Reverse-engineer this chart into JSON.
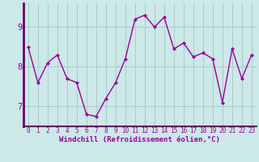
{
  "x": [
    0,
    1,
    2,
    3,
    4,
    5,
    6,
    7,
    8,
    9,
    10,
    11,
    12,
    13,
    14,
    15,
    16,
    17,
    18,
    19,
    20,
    21,
    22,
    23
  ],
  "y": [
    8.5,
    7.6,
    8.1,
    8.3,
    7.7,
    7.6,
    6.8,
    6.75,
    7.2,
    7.6,
    8.2,
    9.2,
    9.3,
    9.0,
    9.25,
    8.45,
    8.6,
    8.25,
    8.35,
    8.2,
    7.1,
    8.45,
    7.7,
    8.3
  ],
  "line_color": "#990099",
  "marker": "D",
  "marker_size": 2,
  "bg_color": "#cce8e8",
  "grid_color": "#aacccc",
  "xlabel": "Windchill (Refroidissement éolien,°C)",
  "xlabel_color": "#990099",
  "tick_color": "#990099",
  "ylim": [
    6.5,
    9.6
  ],
  "xlim": [
    -0.5,
    23.5
  ],
  "yticks": [
    7,
    8,
    9
  ],
  "xticks": [
    0,
    1,
    2,
    3,
    4,
    5,
    6,
    7,
    8,
    9,
    10,
    11,
    12,
    13,
    14,
    15,
    16,
    17,
    18,
    19,
    20,
    21,
    22,
    23
  ],
  "spine_color": "#660066",
  "linewidth": 1.0,
  "tick_fontsize": 5.5,
  "xlabel_fontsize": 6.5
}
